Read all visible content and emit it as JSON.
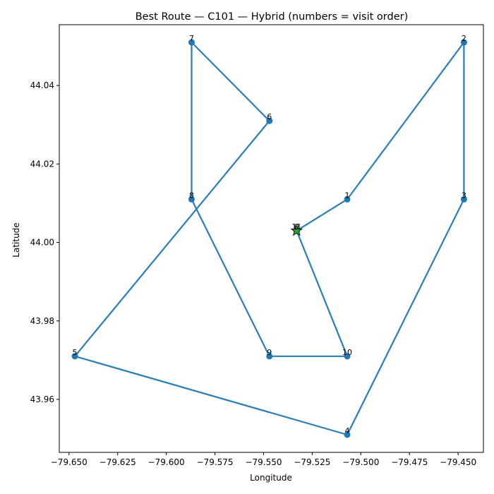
{
  "chart_data": {
    "type": "line",
    "title": "Best Route — C101 — Hybrid (numbers = visit order)",
    "xlabel": "Longitude",
    "ylabel": "Latitude",
    "xlim": [
      -79.655,
      -79.437
    ],
    "ylim": [
      43.9465,
      44.0555
    ],
    "xticks": [
      -79.65,
      -79.625,
      -79.6,
      -79.575,
      -79.55,
      -79.525,
      -79.5,
      -79.475,
      -79.45
    ],
    "xtick_labels": [
      "−79.650",
      "−79.625",
      "−79.600",
      "−79.575",
      "−79.550",
      "−79.525",
      "−79.500",
      "−79.475",
      "−79.450"
    ],
    "yticks": [
      43.96,
      43.98,
      44.0,
      44.02,
      44.04
    ],
    "ytick_labels": [
      "43.96",
      "43.98",
      "44.00",
      "44.02",
      "44.04"
    ],
    "grid": false,
    "line_color": "#1f77b4",
    "depot_color": "#2ca02c",
    "depot": {
      "x": -79.533,
      "y": 44.003
    },
    "route": [
      {
        "order": "0",
        "x": -79.533,
        "y": 44.003
      },
      {
        "order": "1",
        "x": -79.507,
        "y": 44.011
      },
      {
        "order": "2",
        "x": -79.447,
        "y": 44.051
      },
      {
        "order": "3",
        "x": -79.447,
        "y": 44.011
      },
      {
        "order": "4",
        "x": -79.507,
        "y": 43.951
      },
      {
        "order": "5",
        "x": -79.647,
        "y": 43.971
      },
      {
        "order": "6",
        "x": -79.547,
        "y": 44.031
      },
      {
        "order": "7",
        "x": -79.587,
        "y": 44.051
      },
      {
        "order": "8",
        "x": -79.587,
        "y": 44.011
      },
      {
        "order": "9",
        "x": -79.547,
        "y": 43.971
      },
      {
        "order": "10",
        "x": -79.507,
        "y": 43.971
      },
      {
        "order": "11",
        "x": -79.533,
        "y": 44.003
      }
    ]
  }
}
